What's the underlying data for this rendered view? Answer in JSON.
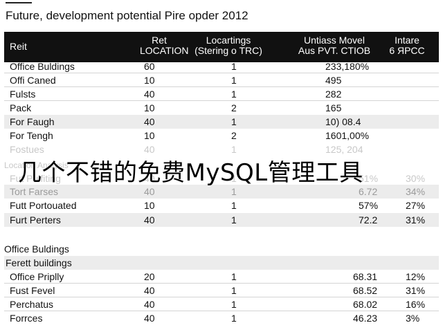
{
  "title": "Future, development potential Pire opder 2012",
  "header": {
    "col0": "Reit",
    "col1_line1": "Ret",
    "col1_line2": "LOCATION",
    "col2_line1": "Locartings",
    "col2_line2": "(Stering o TRC)",
    "col3_line1": "Untiass Movel",
    "col3_line2": "Aus PVT. CTIOB",
    "col4_line1": "Intare",
    "col4_line2": "6 ЯPCC"
  },
  "rows_a": [
    {
      "name": "Office Buldings",
      "loc": "60",
      "count": "1",
      "val": "233,180%",
      "pct": ""
    },
    {
      "name": "Offi Caned",
      "loc": "10",
      "count": "1",
      "val": "495",
      "pct": ""
    },
    {
      "name": "Fulsts",
      "loc": "40",
      "count": "1",
      "val": "282",
      "pct": ""
    },
    {
      "name": "Pack",
      "loc": "10",
      "count": "2",
      "val": "165",
      "pct": ""
    },
    {
      "name": "For Faugh",
      "loc": "40",
      "count": "1",
      "val": "10) 08.4",
      "pct": ""
    },
    {
      "name": "For Tengh",
      "loc": "10",
      "count": "2",
      "val": "1601,00%",
      "pct": ""
    },
    {
      "name": "Fostues",
      "loc": "40",
      "count": "1",
      "val": "125, 204",
      "pct": ""
    }
  ],
  "faded_section": "Location Analysis",
  "rows_b": [
    {
      "name": "Fut Pulfiting",
      "loc": "40",
      "count": "1",
      "val": "51%",
      "pct": "30%"
    },
    {
      "name": "Tort Farses",
      "loc": "40",
      "count": "1",
      "val": "6.72",
      "pct": "34%"
    },
    {
      "name": "Futt Portouated",
      "loc": "10",
      "count": "1",
      "val": "57%",
      "pct": "27%"
    },
    {
      "name": "Furt Perters",
      "loc": "40",
      "count": "1",
      "val": "72.2",
      "pct": "31%"
    }
  ],
  "section_office": "Office Buldings",
  "section_ferett": "Ferett buildings",
  "rows_c": [
    {
      "name": "Office Priplly",
      "loc": "20",
      "count": "1",
      "val": "68.31",
      "pct": "12%"
    },
    {
      "name": "Fust Fevel",
      "loc": "40",
      "count": "1",
      "val": "68.52",
      "pct": "31%"
    },
    {
      "name": "Perchatus",
      "loc": "40",
      "count": "1",
      "val": "68.02",
      "pct": "16%"
    },
    {
      "name": "Forrces",
      "loc": "40",
      "count": "1",
      "val": "46.23",
      "pct": "3%"
    }
  ],
  "watermark": "几个不错的免费MySQL管理工具"
}
